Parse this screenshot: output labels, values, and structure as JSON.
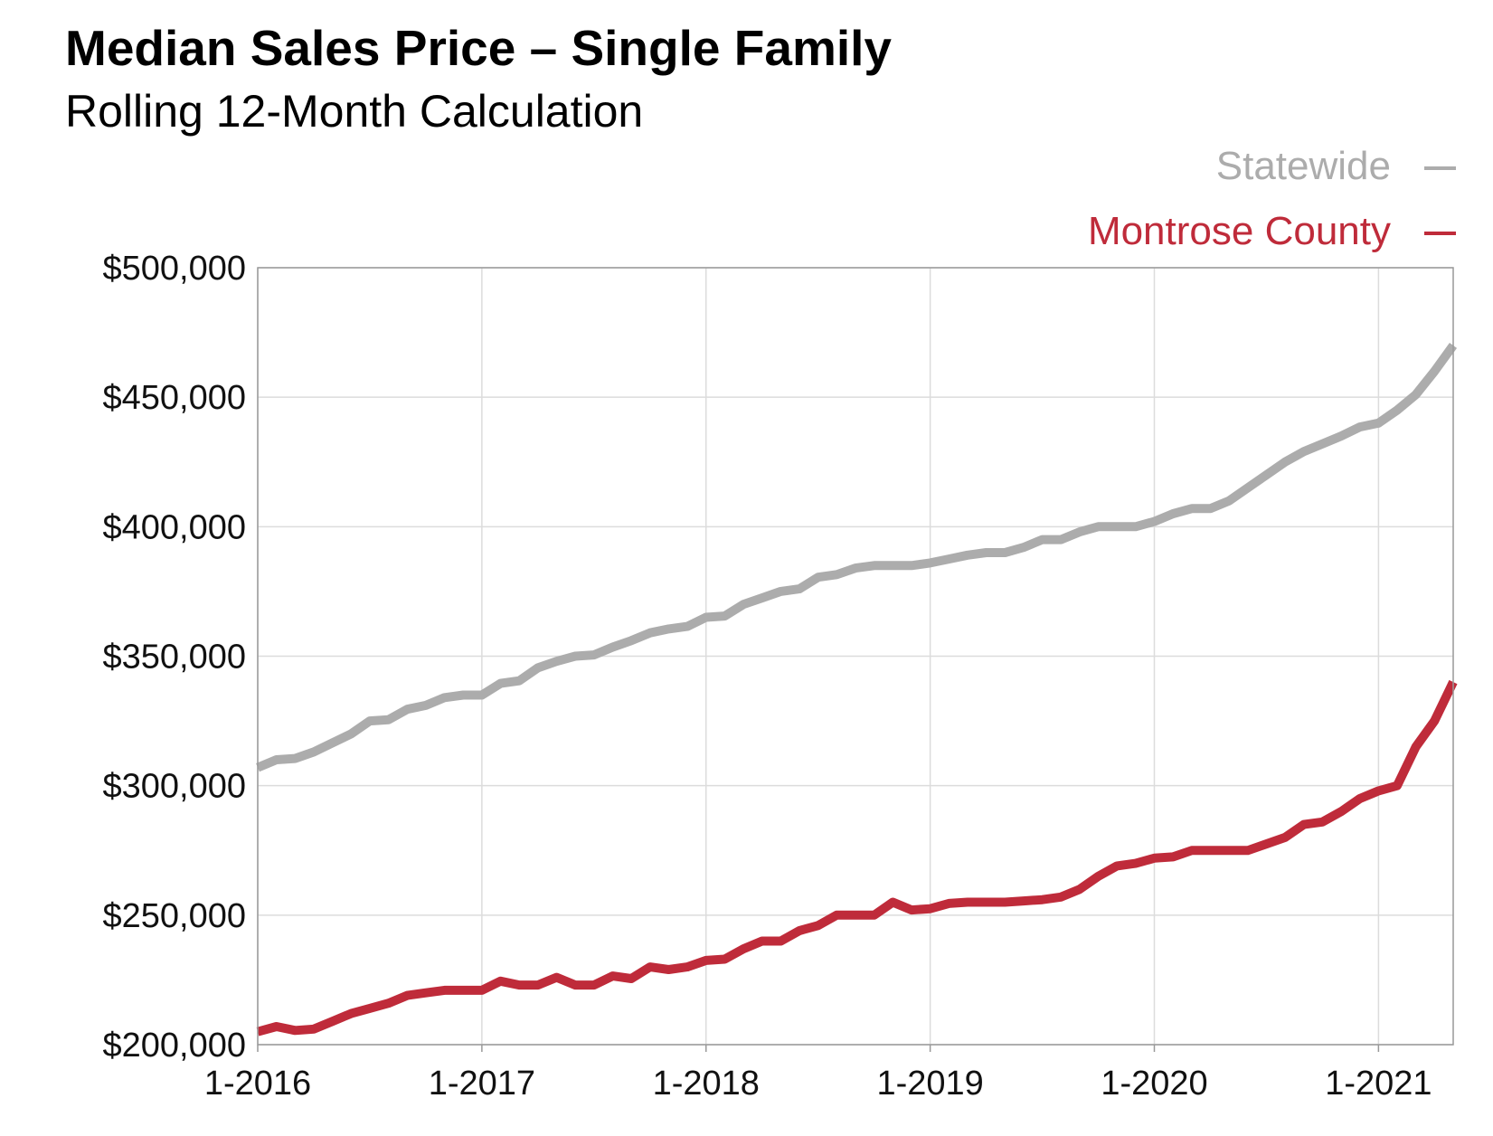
{
  "colors": {
    "statewide": "#acacac",
    "montrose": "#bf2b3a",
    "grid": "#dcdcdc"
  },
  "chart_data": {
    "type": "line",
    "title": "Median Sales Price – Single Family",
    "subtitle": "Rolling 12-Month Calculation",
    "xlabel": "",
    "ylabel": "",
    "ylim": [
      200000,
      500000
    ],
    "x_start": "1-2016",
    "x_end": "6-2021",
    "x_ticks": [
      "1-2016",
      "1-2017",
      "1-2018",
      "1-2019",
      "1-2020",
      "1-2021"
    ],
    "y_ticks": [
      200000,
      250000,
      300000,
      350000,
      400000,
      450000,
      500000
    ],
    "y_tick_labels": [
      "$200,000",
      "$250,000",
      "$300,000",
      "$350,000",
      "$400,000",
      "$450,000",
      "$500,000"
    ],
    "legend": [
      "Statewide",
      "Montrose County"
    ],
    "legend_position": "top-right",
    "grid": true,
    "series": [
      {
        "name": "Statewide",
        "color": "#acacac",
        "values": [
          307000,
          310000,
          310500,
          313000,
          316500,
          320000,
          325000,
          325500,
          329500,
          331000,
          334000,
          335000,
          335000,
          339500,
          340500,
          345500,
          348000,
          350000,
          350500,
          353500,
          356000,
          359000,
          360500,
          361500,
          365000,
          365500,
          370000,
          372500,
          375000,
          376000,
          380500,
          381500,
          384000,
          385000,
          385000,
          385000,
          386000,
          387500,
          389000,
          390000,
          390000,
          392000,
          395000,
          395000,
          398000,
          400000,
          400000,
          400000,
          402000,
          405000,
          407000,
          407000,
          410000,
          415000,
          420000,
          425000,
          429000,
          432000,
          435000,
          438500,
          440000,
          445000,
          451000,
          460000,
          470000
        ]
      },
      {
        "name": "Montrose County",
        "color": "#bf2b3a",
        "values": [
          205000,
          207000,
          205500,
          206000,
          209000,
          212000,
          214000,
          216000,
          219000,
          220000,
          221000,
          221000,
          221000,
          224500,
          223000,
          223000,
          226000,
          223000,
          223000,
          226500,
          225500,
          230000,
          229000,
          230000,
          232500,
          233000,
          237000,
          240000,
          240000,
          244000,
          246000,
          250000,
          250000,
          250000,
          255000,
          252000,
          252500,
          254500,
          255000,
          255000,
          255000,
          255500,
          256000,
          257000,
          260000,
          265000,
          269000,
          270000,
          272000,
          272500,
          275000,
          275000,
          275000,
          275000,
          277500,
          280000,
          285000,
          286000,
          290000,
          295000,
          298000,
          300000,
          315000,
          325000,
          340000
        ]
      }
    ]
  }
}
